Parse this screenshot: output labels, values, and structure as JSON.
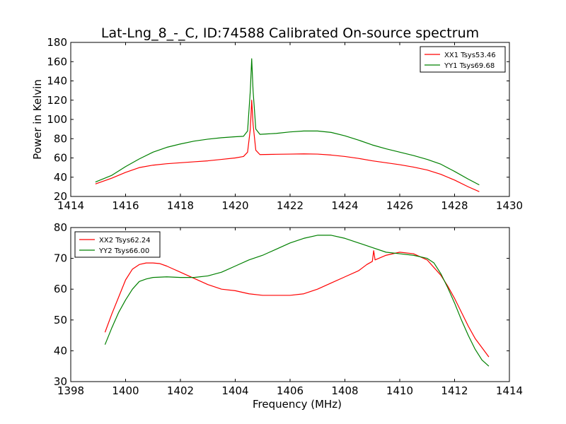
{
  "figure": {
    "title": "Lat-Lng_8_-_C, ID:74588 Calibrated On-source spectrum"
  },
  "chart_data": [
    {
      "type": "line",
      "title": "Lat-Lng_8_-_C, ID:74588 Calibrated On-source spectrum",
      "xlabel": "",
      "ylabel": "Power in Kelvin",
      "xlim": [
        1414,
        1430
      ],
      "ylim": [
        20,
        180
      ],
      "xticks": [
        1414,
        1416,
        1418,
        1420,
        1422,
        1424,
        1426,
        1428,
        1430
      ],
      "yticks": [
        20,
        40,
        60,
        80,
        100,
        120,
        140,
        160,
        180
      ],
      "grid": false,
      "legend_position": "top-right",
      "series": [
        {
          "name": "XX1 Tsys53.46",
          "color": "#ff0000",
          "points": [
            [
              1414.9,
              33
            ],
            [
              1415.5,
              39
            ],
            [
              1416,
              45
            ],
            [
              1416.5,
              50
            ],
            [
              1417,
              52.5
            ],
            [
              1417.5,
              54
            ],
            [
              1418,
              55
            ],
            [
              1418.5,
              56
            ],
            [
              1419,
              57
            ],
            [
              1419.5,
              58.5
            ],
            [
              1420,
              60
            ],
            [
              1420.3,
              61.5
            ],
            [
              1420.45,
              66
            ],
            [
              1420.55,
              90
            ],
            [
              1420.6,
              120
            ],
            [
              1420.65,
              95
            ],
            [
              1420.75,
              68
            ],
            [
              1420.9,
              63.5
            ],
            [
              1421.5,
              63.8
            ],
            [
              1422,
              64
            ],
            [
              1422.5,
              64.2
            ],
            [
              1423,
              64
            ],
            [
              1423.5,
              63
            ],
            [
              1424,
              61.5
            ],
            [
              1424.5,
              59.5
            ],
            [
              1425,
              57
            ],
            [
              1425.5,
              55
            ],
            [
              1426,
              53
            ],
            [
              1426.5,
              50.5
            ],
            [
              1427,
              47.5
            ],
            [
              1427.5,
              43
            ],
            [
              1428,
              37
            ],
            [
              1428.5,
              30
            ],
            [
              1428.9,
              25
            ]
          ]
        },
        {
          "name": "YY1 Tsys69.68",
          "color": "#008000",
          "points": [
            [
              1414.9,
              35
            ],
            [
              1415.5,
              42
            ],
            [
              1416,
              51
            ],
            [
              1416.5,
              59
            ],
            [
              1417,
              66
            ],
            [
              1417.5,
              71
            ],
            [
              1418,
              74.5
            ],
            [
              1418.5,
              77.5
            ],
            [
              1419,
              79.5
            ],
            [
              1419.5,
              81
            ],
            [
              1420,
              82
            ],
            [
              1420.3,
              82.5
            ],
            [
              1420.45,
              88
            ],
            [
              1420.55,
              130
            ],
            [
              1420.6,
              163
            ],
            [
              1420.65,
              130
            ],
            [
              1420.75,
              90
            ],
            [
              1420.9,
              84.5
            ],
            [
              1421.5,
              85.5
            ],
            [
              1422,
              87
            ],
            [
              1422.5,
              88
            ],
            [
              1423,
              88
            ],
            [
              1423.5,
              86.5
            ],
            [
              1424,
              83
            ],
            [
              1424.5,
              78.5
            ],
            [
              1425,
              73.5
            ],
            [
              1425.5,
              69.5
            ],
            [
              1426,
              66
            ],
            [
              1426.5,
              62.5
            ],
            [
              1427,
              58.5
            ],
            [
              1427.5,
              53.5
            ],
            [
              1428,
              46
            ],
            [
              1428.5,
              38
            ],
            [
              1428.9,
              32
            ]
          ]
        }
      ]
    },
    {
      "type": "line",
      "title": "",
      "xlabel": "Frequency (MHz)",
      "ylabel": "",
      "xlim": [
        1398,
        1414
      ],
      "ylim": [
        30,
        80
      ],
      "xticks": [
        1398,
        1400,
        1402,
        1404,
        1406,
        1408,
        1410,
        1412,
        1414
      ],
      "yticks": [
        30,
        40,
        50,
        60,
        70,
        80
      ],
      "grid": false,
      "legend_position": "top-left",
      "series": [
        {
          "name": "XX2 Tsys62.24",
          "color": "#ff0000",
          "points": [
            [
              1399.25,
              46
            ],
            [
              1399.5,
              52
            ],
            [
              1399.75,
              57.5
            ],
            [
              1400,
              63
            ],
            [
              1400.25,
              66.5
            ],
            [
              1400.5,
              68
            ],
            [
              1400.75,
              68.5
            ],
            [
              1401,
              68.5
            ],
            [
              1401.25,
              68.3
            ],
            [
              1401.5,
              67.5
            ],
            [
              1401.75,
              66.5
            ],
            [
              1402,
              65.5
            ],
            [
              1402.25,
              64.5
            ],
            [
              1402.5,
              63.5
            ],
            [
              1402.75,
              62.5
            ],
            [
              1403,
              61.5
            ],
            [
              1403.5,
              60
            ],
            [
              1404,
              59.5
            ],
            [
              1404.5,
              58.5
            ],
            [
              1405,
              58
            ],
            [
              1405.5,
              58
            ],
            [
              1406,
              58
            ],
            [
              1406.5,
              58.5
            ],
            [
              1407,
              60
            ],
            [
              1407.5,
              62
            ],
            [
              1408,
              64
            ],
            [
              1408.5,
              66
            ],
            [
              1408.8,
              68
            ],
            [
              1409,
              69
            ],
            [
              1409.05,
              72.5
            ],
            [
              1409.1,
              69.5
            ],
            [
              1409.5,
              71
            ],
            [
              1410,
              72
            ],
            [
              1410.5,
              71.5
            ],
            [
              1410.75,
              70.5
            ],
            [
              1411,
              69.5
            ],
            [
              1411.25,
              67
            ],
            [
              1411.5,
              64.5
            ],
            [
              1411.75,
              61
            ],
            [
              1412,
              57
            ],
            [
              1412.25,
              52.5
            ],
            [
              1412.5,
              48
            ],
            [
              1412.75,
              44
            ],
            [
              1413,
              41
            ],
            [
              1413.25,
              38
            ]
          ]
        },
        {
          "name": "YY2 Tsys66.00",
          "color": "#008000",
          "points": [
            [
              1399.25,
              42
            ],
            [
              1399.5,
              47.5
            ],
            [
              1399.75,
              52.5
            ],
            [
              1400,
              56.5
            ],
            [
              1400.25,
              60
            ],
            [
              1400.5,
              62.5
            ],
            [
              1400.75,
              63.3
            ],
            [
              1401,
              63.8
            ],
            [
              1401.5,
              64
            ],
            [
              1402,
              63.8
            ],
            [
              1402.5,
              63.8
            ],
            [
              1403,
              64.3
            ],
            [
              1403.5,
              65.5
            ],
            [
              1404,
              67.5
            ],
            [
              1404.5,
              69.5
            ],
            [
              1405,
              71
            ],
            [
              1405.5,
              73
            ],
            [
              1406,
              75
            ],
            [
              1406.5,
              76.5
            ],
            [
              1407,
              77.5
            ],
            [
              1407.5,
              77.5
            ],
            [
              1408,
              76.5
            ],
            [
              1408.5,
              75
            ],
            [
              1409,
              73.5
            ],
            [
              1409.5,
              72
            ],
            [
              1410,
              71.5
            ],
            [
              1410.5,
              71
            ],
            [
              1411,
              70
            ],
            [
              1411.25,
              68.5
            ],
            [
              1411.5,
              65
            ],
            [
              1411.75,
              60.5
            ],
            [
              1412,
              55.5
            ],
            [
              1412.25,
              50
            ],
            [
              1412.5,
              45
            ],
            [
              1412.75,
              40.5
            ],
            [
              1413,
              37
            ],
            [
              1413.25,
              35
            ]
          ]
        }
      ]
    }
  ]
}
